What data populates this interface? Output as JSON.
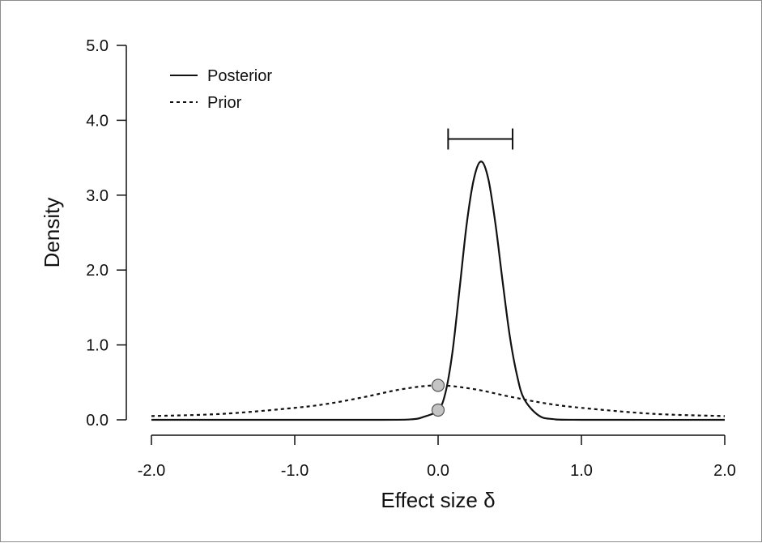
{
  "chart_data": {
    "type": "line",
    "title": "",
    "xlabel": "Effect size δ",
    "ylabel": "Density",
    "xlim": [
      -2.0,
      2.0
    ],
    "ylim": [
      0.0,
      5.0
    ],
    "x_ticks": [
      -2.0,
      -1.0,
      0.0,
      1.0,
      2.0
    ],
    "x_tick_labels": [
      "-2.0",
      "-1.0",
      "0.0",
      "1.0",
      "2.0"
    ],
    "y_ticks": [
      0.0,
      1.0,
      2.0,
      3.0,
      4.0,
      5.0
    ],
    "y_tick_labels": [
      "0.0",
      "1.0",
      "2.0",
      "3.0",
      "4.0",
      "5.0"
    ],
    "grid": false,
    "legend_position": "top-left",
    "series": [
      {
        "name": "Posterior",
        "line_style": "solid",
        "x": [
          -2.0,
          -1.0,
          -0.5,
          -0.2,
          -0.1,
          0.0,
          0.05,
          0.1,
          0.15,
          0.2,
          0.25,
          0.3,
          0.35,
          0.4,
          0.45,
          0.5,
          0.55,
          0.6,
          0.7,
          0.8,
          1.0,
          2.0
        ],
        "y": [
          0.0,
          0.0,
          0.0,
          0.005,
          0.04,
          0.13,
          0.35,
          0.9,
          1.75,
          2.62,
          3.22,
          3.45,
          3.22,
          2.62,
          1.85,
          1.12,
          0.6,
          0.28,
          0.06,
          0.01,
          0.0,
          0.0
        ]
      },
      {
        "name": "Prior",
        "line_style": "dashed",
        "x": [
          -2.0,
          -1.5,
          -1.0,
          -0.75,
          -0.5,
          -0.25,
          0.0,
          0.25,
          0.5,
          0.75,
          1.0,
          1.5,
          2.0
        ],
        "y": [
          0.05,
          0.08,
          0.16,
          0.22,
          0.31,
          0.41,
          0.46,
          0.41,
          0.31,
          0.22,
          0.16,
          0.08,
          0.05
        ]
      }
    ],
    "points": [
      {
        "x": 0.0,
        "y": 0.46,
        "label": "prior density at zero"
      },
      {
        "x": 0.0,
        "y": 0.13,
        "label": "posterior density at zero"
      }
    ],
    "credible_interval": {
      "lower": 0.07,
      "upper": 0.52,
      "y": 3.75
    },
    "colors": {
      "line": "#111111",
      "point_fill": "#c4c4c4",
      "point_stroke": "#555555"
    }
  }
}
